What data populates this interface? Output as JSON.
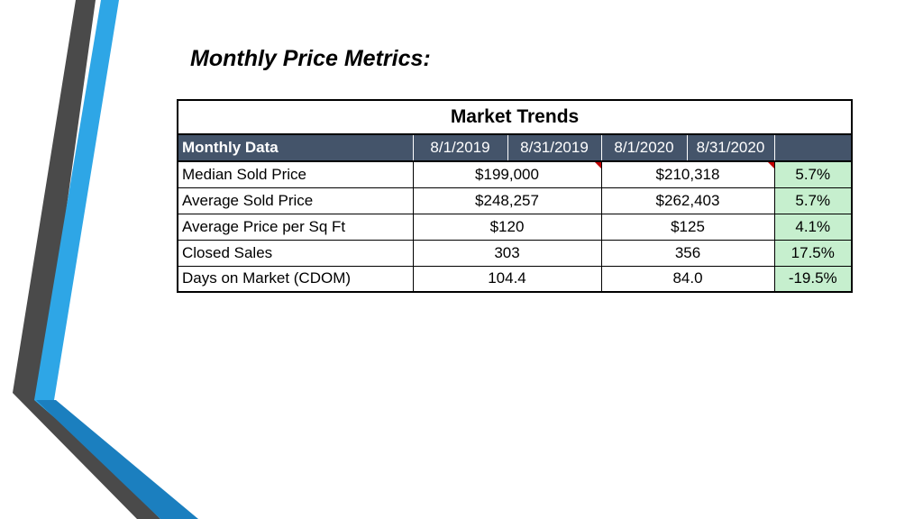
{
  "slide": {
    "title": "Monthly Price Metrics:"
  },
  "colors": {
    "header_bg": "#44546a",
    "positive_bg": "#c6efce",
    "accent_blue": "#2ea6e6",
    "accent_gray": "#4a4a4a",
    "comment_flag": "#c00000"
  },
  "table": {
    "title": "Market Trends",
    "headers": [
      "Monthly Data",
      "8/1/2019",
      "8/31/2019",
      "8/1/2020",
      "8/31/2020",
      ""
    ],
    "rows": [
      {
        "metric": "Median Sold Price",
        "period1": "$199,000",
        "period2": "$210,318",
        "change": "5.7%"
      },
      {
        "metric": "Average Sold Price",
        "period1": "$248,257",
        "period2": "$262,403",
        "change": "5.7%"
      },
      {
        "metric": "Average Price per Sq Ft",
        "period1": "$120",
        "period2": "$125",
        "change": "4.1%"
      },
      {
        "metric": "Closed Sales",
        "period1": "303",
        "period2": "356",
        "change": "17.5%"
      },
      {
        "metric": "Days on Market (CDOM)",
        "period1": "104.4",
        "period2": "84.0",
        "change": "-19.5%"
      }
    ]
  }
}
